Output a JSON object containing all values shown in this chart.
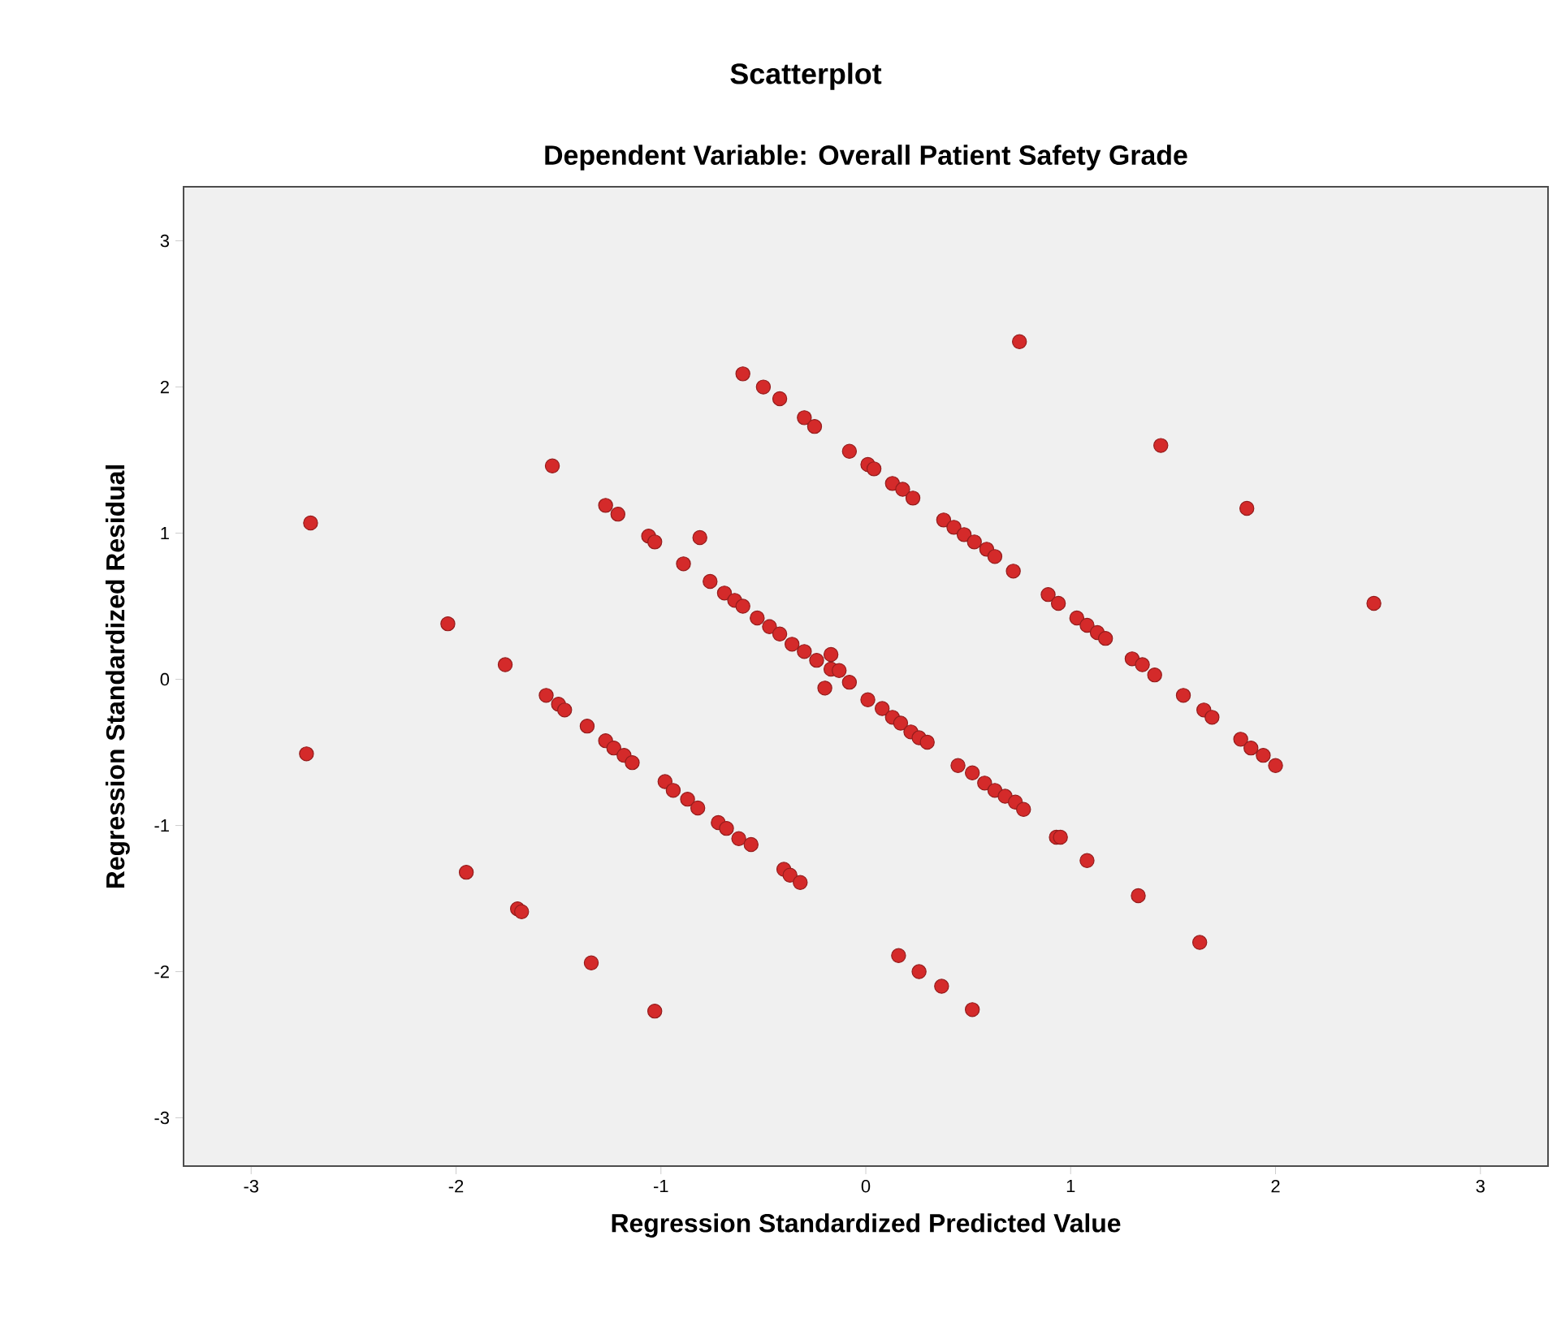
{
  "chart_data": {
    "type": "scatter",
    "title": "Scatterplot",
    "subtitle": "Dependent Variable: Overall Patient Safety Grade",
    "xlabel": "Regression Standardized Predicted Value",
    "ylabel": "Regression Standardized Residual",
    "xlim": [
      -3.33,
      3.33
    ],
    "ylim": [
      -3.33,
      3.37
    ],
    "xticks": [
      -3,
      -2,
      -1,
      0,
      1,
      2,
      3
    ],
    "yticks": [
      -3,
      -2,
      -1,
      0,
      1,
      2,
      3
    ],
    "marker": "circle",
    "series": [
      {
        "color": "#d42a2a",
        "x": [
          -2.71,
          -2.73,
          -2.04,
          -1.95,
          -1.76,
          -1.7,
          -1.68,
          -1.53,
          -1.34,
          -1.03,
          -1.56,
          -1.5,
          -1.47,
          -1.36,
          -1.27,
          -1.23,
          -1.18,
          -1.14,
          -0.98,
          -0.94,
          -0.87,
          -0.82,
          -0.72,
          -0.68,
          -0.62,
          -0.56,
          -0.4,
          -0.37,
          -0.32,
          -1.27,
          -1.21,
          -1.06,
          -1.03,
          -0.81,
          -0.89,
          -0.76,
          -0.69,
          -0.64,
          -0.6,
          -0.53,
          -0.47,
          -0.42,
          -0.36,
          -0.3,
          -0.24,
          -0.17,
          -0.2,
          -0.17,
          -0.13,
          -0.08,
          0.01,
          0.08,
          0.13,
          0.17,
          0.22,
          0.26,
          0.3,
          0.45,
          0.52,
          0.58,
          0.63,
          0.68,
          0.73,
          0.77,
          0.93,
          0.95,
          1.08,
          1.33,
          1.63,
          0.16,
          0.26,
          0.37,
          0.52,
          -0.6,
          -0.5,
          -0.42,
          -0.3,
          -0.25,
          -0.08,
          0.01,
          0.04,
          0.13,
          0.18,
          0.23,
          0.38,
          0.43,
          0.48,
          0.53,
          0.59,
          0.63,
          0.72,
          0.89,
          0.94,
          1.03,
          1.08,
          1.13,
          1.17,
          1.3,
          1.35,
          1.41,
          1.55,
          1.65,
          1.69,
          1.83,
          1.88,
          1.94,
          2.0,
          0.75,
          1.44,
          1.86,
          2.48
        ],
        "values": [
          1.07,
          -0.51,
          0.38,
          -1.32,
          0.1,
          -1.57,
          -1.59,
          1.46,
          -1.94,
          -2.27,
          -0.11,
          -0.17,
          -0.21,
          -0.32,
          -0.42,
          -0.47,
          -0.52,
          -0.57,
          -0.7,
          -0.76,
          -0.82,
          -0.88,
          -0.98,
          -1.02,
          -1.09,
          -1.13,
          -1.3,
          -1.34,
          -1.39,
          1.19,
          1.13,
          0.98,
          0.94,
          0.97,
          0.79,
          0.67,
          0.59,
          0.54,
          0.5,
          0.42,
          0.36,
          0.31,
          0.24,
          0.19,
          0.13,
          0.07,
          -0.06,
          0.17,
          0.06,
          -0.02,
          -0.14,
          -0.2,
          -0.26,
          -0.3,
          -0.36,
          -0.4,
          -0.43,
          -0.59,
          -0.64,
          -0.71,
          -0.76,
          -0.8,
          -0.84,
          -0.89,
          -1.08,
          -1.08,
          -1.24,
          -1.48,
          -1.8,
          -1.89,
          -2.0,
          -2.1,
          -2.26,
          2.09,
          2.0,
          1.92,
          1.79,
          1.73,
          1.56,
          1.47,
          1.44,
          1.34,
          1.3,
          1.24,
          1.09,
          1.04,
          0.99,
          0.94,
          0.89,
          0.84,
          0.74,
          0.58,
          0.52,
          0.42,
          0.37,
          0.32,
          0.28,
          0.14,
          0.1,
          0.03,
          -0.11,
          -0.21,
          -0.26,
          -0.41,
          -0.47,
          -0.52,
          -0.59,
          2.31,
          1.6,
          1.17,
          0.52
        ]
      }
    ]
  }
}
